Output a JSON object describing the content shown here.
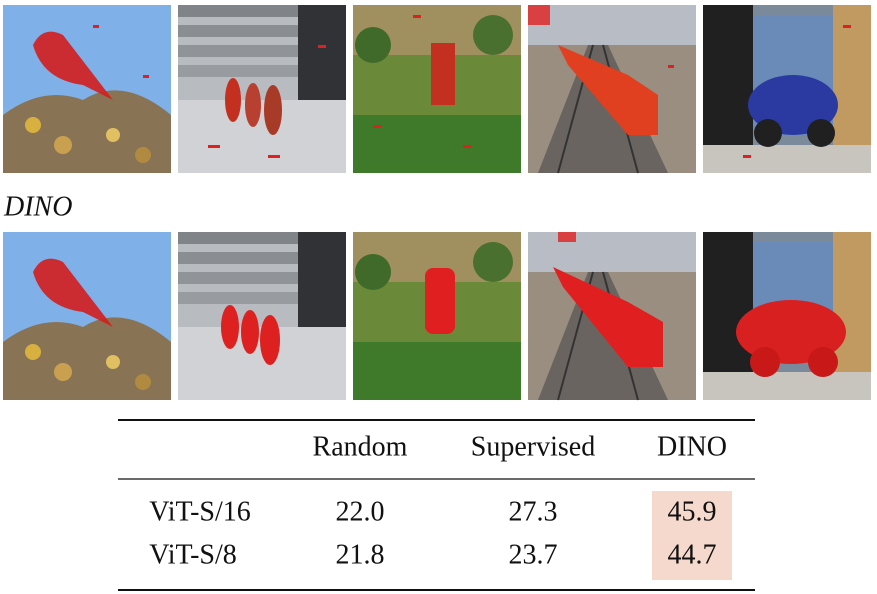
{
  "row_label": "DINO",
  "table": {
    "header": [
      "Random",
      "Supervised",
      "DINO"
    ],
    "rows": [
      [
        "ViT-S/16",
        "22.0",
        "27.3",
        "45.9"
      ],
      [
        "ViT-S/8",
        "21.8",
        "23.7",
        "44.7"
      ]
    ]
  }
}
